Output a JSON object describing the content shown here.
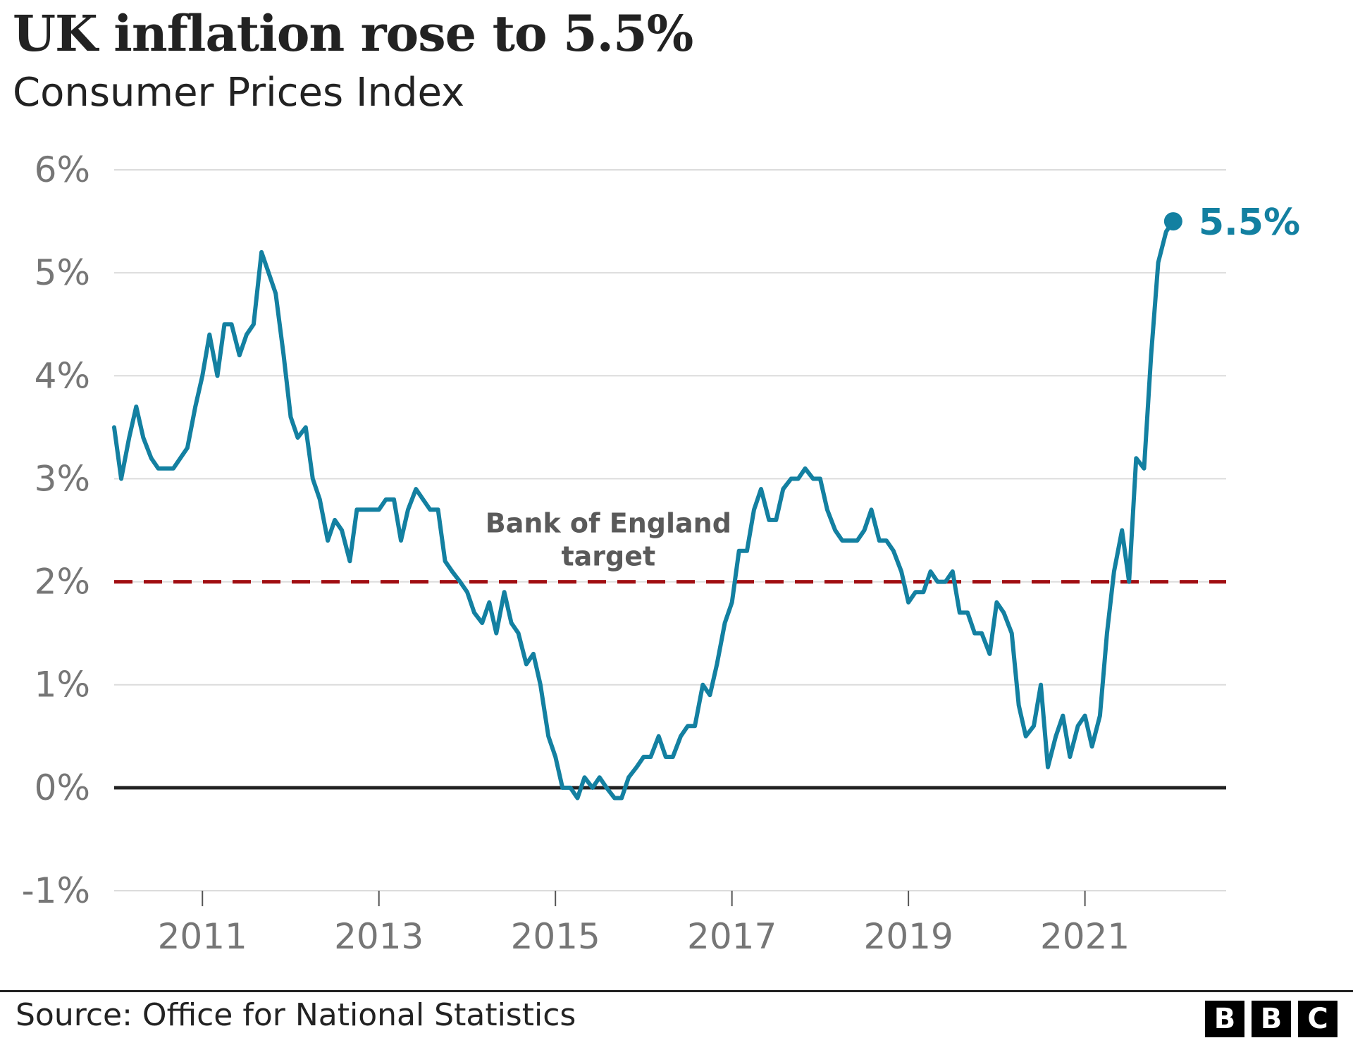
{
  "chart_data": {
    "type": "line",
    "title": "UK inflation rose to 5.5%",
    "subtitle": "Consumer Prices Index",
    "source": "Source: Office for National Statistics",
    "logo": [
      "B",
      "B",
      "C"
    ],
    "y_ticks": [
      -1,
      0,
      1,
      2,
      3,
      4,
      5,
      6
    ],
    "y_tick_labels": [
      "-1%",
      "0%",
      "1%",
      "2%",
      "3%",
      "4%",
      "5%",
      "6%"
    ],
    "x_ticks": [
      2011,
      2013,
      2015,
      2017,
      2019,
      2021
    ],
    "x_tick_labels": [
      "2011",
      "2013",
      "2015",
      "2017",
      "2019",
      "2021"
    ],
    "ylim": [
      -1,
      6
    ],
    "xlim": [
      2010.0,
      2022.6
    ],
    "grid": true,
    "target": {
      "value": 2,
      "label_lines": [
        "Bank of England",
        "target"
      ],
      "color": "#a00d11"
    },
    "series": [
      {
        "color": "#1380a1",
        "end_label": "5.5%",
        "points": [
          [
            2010.0,
            3.5
          ],
          [
            2010.08,
            3.0
          ],
          [
            2010.17,
            3.4
          ],
          [
            2010.25,
            3.7
          ],
          [
            2010.33,
            3.4
          ],
          [
            2010.42,
            3.2
          ],
          [
            2010.5,
            3.1
          ],
          [
            2010.58,
            3.1
          ],
          [
            2010.67,
            3.1
          ],
          [
            2010.75,
            3.2
          ],
          [
            2010.83,
            3.3
          ],
          [
            2010.92,
            3.7
          ],
          [
            2011.0,
            4.0
          ],
          [
            2011.08,
            4.4
          ],
          [
            2011.17,
            4.0
          ],
          [
            2011.25,
            4.5
          ],
          [
            2011.33,
            4.5
          ],
          [
            2011.42,
            4.2
          ],
          [
            2011.5,
            4.4
          ],
          [
            2011.58,
            4.5
          ],
          [
            2011.67,
            5.2
          ],
          [
            2011.75,
            5.0
          ],
          [
            2011.83,
            4.8
          ],
          [
            2011.92,
            4.2
          ],
          [
            2012.0,
            3.6
          ],
          [
            2012.08,
            3.4
          ],
          [
            2012.17,
            3.5
          ],
          [
            2012.25,
            3.0
          ],
          [
            2012.33,
            2.8
          ],
          [
            2012.42,
            2.4
          ],
          [
            2012.5,
            2.6
          ],
          [
            2012.58,
            2.5
          ],
          [
            2012.67,
            2.2
          ],
          [
            2012.75,
            2.7
          ],
          [
            2012.83,
            2.7
          ],
          [
            2012.92,
            2.7
          ],
          [
            2013.0,
            2.7
          ],
          [
            2013.08,
            2.8
          ],
          [
            2013.17,
            2.8
          ],
          [
            2013.25,
            2.4
          ],
          [
            2013.33,
            2.7
          ],
          [
            2013.42,
            2.9
          ],
          [
            2013.5,
            2.8
          ],
          [
            2013.58,
            2.7
          ],
          [
            2013.67,
            2.7
          ],
          [
            2013.75,
            2.2
          ],
          [
            2013.83,
            2.1
          ],
          [
            2013.92,
            2.0
          ],
          [
            2014.0,
            1.9
          ],
          [
            2014.08,
            1.7
          ],
          [
            2014.17,
            1.6
          ],
          [
            2014.25,
            1.8
          ],
          [
            2014.33,
            1.5
          ],
          [
            2014.42,
            1.9
          ],
          [
            2014.5,
            1.6
          ],
          [
            2014.58,
            1.5
          ],
          [
            2014.67,
            1.2
          ],
          [
            2014.75,
            1.3
          ],
          [
            2014.83,
            1.0
          ],
          [
            2014.92,
            0.5
          ],
          [
            2015.0,
            0.3
          ],
          [
            2015.08,
            0.0
          ],
          [
            2015.17,
            0.0
          ],
          [
            2015.25,
            -0.1
          ],
          [
            2015.33,
            0.1
          ],
          [
            2015.42,
            0.0
          ],
          [
            2015.5,
            0.1
          ],
          [
            2015.58,
            0.0
          ],
          [
            2015.67,
            -0.1
          ],
          [
            2015.75,
            -0.1
          ],
          [
            2015.83,
            0.1
          ],
          [
            2015.92,
            0.2
          ],
          [
            2016.0,
            0.3
          ],
          [
            2016.08,
            0.3
          ],
          [
            2016.17,
            0.5
          ],
          [
            2016.25,
            0.3
          ],
          [
            2016.33,
            0.3
          ],
          [
            2016.42,
            0.5
          ],
          [
            2016.5,
            0.6
          ],
          [
            2016.58,
            0.6
          ],
          [
            2016.67,
            1.0
          ],
          [
            2016.75,
            0.9
          ],
          [
            2016.83,
            1.2
          ],
          [
            2016.92,
            1.6
          ],
          [
            2017.0,
            1.8
          ],
          [
            2017.08,
            2.3
          ],
          [
            2017.17,
            2.3
          ],
          [
            2017.25,
            2.7
          ],
          [
            2017.33,
            2.9
          ],
          [
            2017.42,
            2.6
          ],
          [
            2017.5,
            2.6
          ],
          [
            2017.58,
            2.9
          ],
          [
            2017.67,
            3.0
          ],
          [
            2017.75,
            3.0
          ],
          [
            2017.83,
            3.1
          ],
          [
            2017.92,
            3.0
          ],
          [
            2018.0,
            3.0
          ],
          [
            2018.08,
            2.7
          ],
          [
            2018.17,
            2.5
          ],
          [
            2018.25,
            2.4
          ],
          [
            2018.33,
            2.4
          ],
          [
            2018.42,
            2.4
          ],
          [
            2018.5,
            2.5
          ],
          [
            2018.58,
            2.7
          ],
          [
            2018.67,
            2.4
          ],
          [
            2018.75,
            2.4
          ],
          [
            2018.83,
            2.3
          ],
          [
            2018.92,
            2.1
          ],
          [
            2019.0,
            1.8
          ],
          [
            2019.08,
            1.9
          ],
          [
            2019.17,
            1.9
          ],
          [
            2019.25,
            2.1
          ],
          [
            2019.33,
            2.0
          ],
          [
            2019.42,
            2.0
          ],
          [
            2019.5,
            2.1
          ],
          [
            2019.58,
            1.7
          ],
          [
            2019.67,
            1.7
          ],
          [
            2019.75,
            1.5
          ],
          [
            2019.83,
            1.5
          ],
          [
            2019.92,
            1.3
          ],
          [
            2020.0,
            1.8
          ],
          [
            2020.08,
            1.7
          ],
          [
            2020.17,
            1.5
          ],
          [
            2020.25,
            0.8
          ],
          [
            2020.33,
            0.5
          ],
          [
            2020.42,
            0.6
          ],
          [
            2020.5,
            1.0
          ],
          [
            2020.58,
            0.2
          ],
          [
            2020.67,
            0.5
          ],
          [
            2020.75,
            0.7
          ],
          [
            2020.83,
            0.3
          ],
          [
            2020.92,
            0.6
          ],
          [
            2021.0,
            0.7
          ],
          [
            2021.08,
            0.4
          ],
          [
            2021.17,
            0.7
          ],
          [
            2021.25,
            1.5
          ],
          [
            2021.33,
            2.1
          ],
          [
            2021.42,
            2.5
          ],
          [
            2021.5,
            2.0
          ],
          [
            2021.58,
            3.2
          ],
          [
            2021.67,
            3.1
          ],
          [
            2021.75,
            4.2
          ],
          [
            2021.83,
            5.1
          ],
          [
            2021.92,
            5.4
          ],
          [
            2022.0,
            5.5
          ]
        ]
      }
    ]
  }
}
